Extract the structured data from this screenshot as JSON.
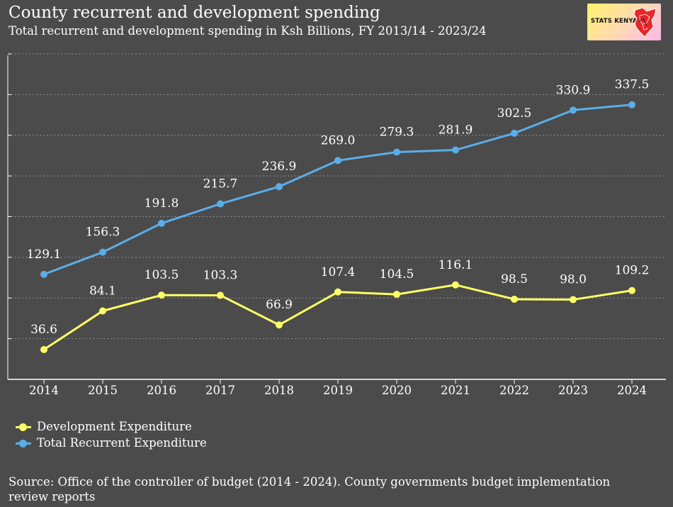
{
  "header": {
    "title": "County recurrent and development spending",
    "subtitle": "Total recurrent and development spending in Ksh Billions, FY 2013/14 - 2023/24"
  },
  "logo": {
    "text": "STATS KENYA",
    "icon": "kenya-map-icon"
  },
  "colors": {
    "background": "#4b4b4b",
    "development": "#ffff66",
    "recurrent": "#5aaee8",
    "axis": "#ffffff",
    "grid": "#cccccc"
  },
  "chart_data": {
    "type": "line",
    "title": "County recurrent and development spending",
    "xlabel": "",
    "ylabel": "",
    "categories": [
      "2014",
      "2015",
      "2016",
      "2017",
      "2018",
      "2019",
      "2020",
      "2021",
      "2022",
      "2023",
      "2024"
    ],
    "ylim": [
      0,
      400
    ],
    "grid": "horizontal dashed",
    "legend_position": "bottom-left",
    "series": [
      {
        "name": "Development Expenditure",
        "color": "#ffff66",
        "values": [
          36.6,
          84.1,
          103.5,
          103.3,
          66.9,
          107.4,
          104.5,
          116.1,
          98.5,
          98.0,
          109.2
        ],
        "labels": [
          "36.6",
          "84.1",
          "103.5",
          "103.3",
          "66.9",
          "107.4",
          "104.5",
          "116.1",
          "98.5",
          "98.0",
          "109.2"
        ]
      },
      {
        "name": "Total Recurrent Expenditure",
        "color": "#5aaee8",
        "values": [
          129.1,
          156.3,
          191.8,
          215.7,
          236.9,
          269.0,
          279.3,
          281.9,
          302.5,
          330.9,
          337.5
        ],
        "labels": [
          "129.1",
          "156.3",
          "191.8",
          "215.7",
          "236.9",
          "269.0",
          "279.3",
          "281.9",
          "302.5",
          "330.9",
          "337.5"
        ]
      }
    ]
  },
  "source": "Source: Office of the controller of budget (2014 - 2024). County governments budget implementation review reports"
}
